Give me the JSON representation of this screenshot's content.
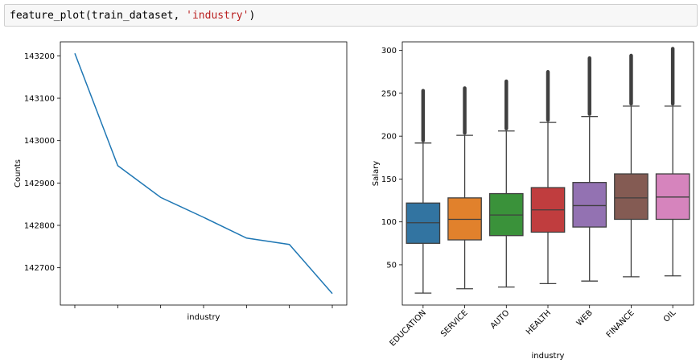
{
  "code": {
    "prefix": "feature_plot(train_dataset, ",
    "arg": "'industry'",
    "suffix": ")"
  },
  "chart_data": [
    {
      "type": "line",
      "xlabel": "industry",
      "ylabel": "Counts",
      "x_tick_count": 7,
      "values": [
        143206,
        142941,
        142866,
        142819,
        142770,
        142755,
        142639
      ],
      "yticks": [
        142700,
        142800,
        142900,
        143000,
        143100,
        143200
      ],
      "ylim": [
        142612,
        143233
      ],
      "grid": false,
      "color": "#1f77b4"
    },
    {
      "type": "box",
      "xlabel": "industry",
      "ylabel": "Salary",
      "categories": [
        "EDUCATION",
        "SERVICE",
        "AUTO",
        "HEALTH",
        "WEB",
        "FINANCE",
        "OIL"
      ],
      "colors": [
        "#3274a1",
        "#e1812c",
        "#3a923a",
        "#c03d3e",
        "#9372b2",
        "#845b53",
        "#d684bd"
      ],
      "boxes": [
        {
          "min": 17,
          "q1": 75,
          "median": 99,
          "q3": 122,
          "max": 192,
          "outlier_max": 253
        },
        {
          "min": 22,
          "q1": 79,
          "median": 103,
          "q3": 128,
          "max": 201,
          "outlier_max": 256
        },
        {
          "min": 24,
          "q1": 84,
          "median": 108,
          "q3": 133,
          "max": 206,
          "outlier_max": 264
        },
        {
          "min": 28,
          "q1": 88,
          "median": 114,
          "q3": 140,
          "max": 216,
          "outlier_max": 275
        },
        {
          "min": 31,
          "q1": 94,
          "median": 119,
          "q3": 146,
          "max": 223,
          "outlier_max": 291
        },
        {
          "min": 36,
          "q1": 103,
          "median": 128,
          "q3": 156,
          "max": 235,
          "outlier_max": 294
        },
        {
          "min": 37,
          "q1": 103,
          "median": 129,
          "q3": 156,
          "max": 235,
          "outlier_max": 302
        }
      ],
      "yticks": [
        50,
        100,
        150,
        200,
        250,
        300
      ],
      "ylim": [
        3,
        310
      ],
      "grid": false
    }
  ]
}
